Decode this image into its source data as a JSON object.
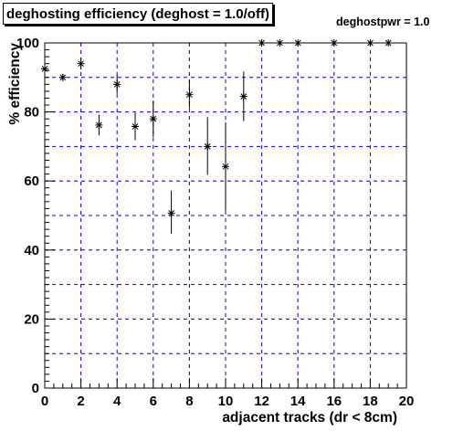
{
  "chart_data": {
    "type": "scatter",
    "title": "deghosting efficiency (deghost = 1.0/off)",
    "annotation": "deghostpwr = 1.0",
    "xlabel": "adjacent tracks (dr < 8cm)",
    "ylabel": "% efficiency",
    "xlim": [
      0,
      20
    ],
    "ylim": [
      0,
      100
    ],
    "xticks": [
      "0",
      "2",
      "4",
      "6",
      "8",
      "10",
      "12",
      "14",
      "16",
      "18",
      "20"
    ],
    "yticks": [
      "0",
      "20",
      "40",
      "60",
      "80",
      "100"
    ],
    "grid": true,
    "grid_color": "#0000cc",
    "marker_color": "#000000",
    "points": [
      {
        "x": 0,
        "y": 92.5,
        "err_low": 0.8,
        "err_high": 0.8
      },
      {
        "x": 1,
        "y": 90.0,
        "err_low": 1.0,
        "err_high": 1.0
      },
      {
        "x": 2,
        "y": 94.0,
        "err_low": 1.7,
        "err_high": 1.7
      },
      {
        "x": 3,
        "y": 76.2,
        "err_low": 3.0,
        "err_high": 3.0
      },
      {
        "x": 4,
        "y": 88.0,
        "err_low": 2.7,
        "err_high": 2.7
      },
      {
        "x": 5,
        "y": 75.8,
        "err_low": 4.0,
        "err_high": 4.0
      },
      {
        "x": 6,
        "y": 78.0,
        "err_low": 5.3,
        "err_high": 5.3
      },
      {
        "x": 7,
        "y": 50.7,
        "err_low": 6.0,
        "err_high": 6.5
      },
      {
        "x": 8,
        "y": 85.0,
        "err_low": 4.0,
        "err_high": 4.3
      },
      {
        "x": 9,
        "y": 70.0,
        "err_low": 8.2,
        "err_high": 8.5
      },
      {
        "x": 10,
        "y": 64.2,
        "err_low": 12.8,
        "err_high": 12.8
      },
      {
        "x": 11,
        "y": 84.5,
        "err_low": 7.2,
        "err_high": 7.2
      },
      {
        "x": 12,
        "y": 100,
        "err_low": 0,
        "err_high": 0
      },
      {
        "x": 13,
        "y": 100,
        "err_low": 0,
        "err_high": 0
      },
      {
        "x": 14,
        "y": 100,
        "err_low": 0,
        "err_high": 0
      },
      {
        "x": 16,
        "y": 100,
        "err_low": 0,
        "err_high": 0
      },
      {
        "x": 18,
        "y": 100,
        "err_low": 0,
        "err_high": 0
      },
      {
        "x": 19,
        "y": 100,
        "err_low": 0,
        "err_high": 0
      }
    ]
  }
}
